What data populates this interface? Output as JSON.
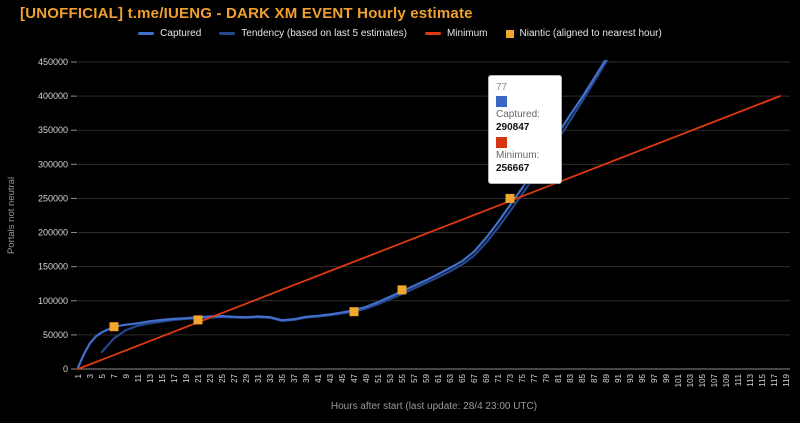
{
  "title": "[UNOFFICIAL] t.me/IUENG - DARK XM EVENT Hourly estimate",
  "legend": [
    {
      "label": "Captured",
      "color": "#4270cc",
      "shape": "dash"
    },
    {
      "label": "Tendency (based on last 5 estimates)",
      "color": "#26468e",
      "shape": "dash"
    },
    {
      "label": "Minimum",
      "color": "#e23a10",
      "shape": "dash"
    },
    {
      "label": "Niantic (aligned to nearest hour)",
      "color": "#f2a62c",
      "shape": "square"
    }
  ],
  "tooltip": {
    "index": "77",
    "rows": [
      {
        "swatch_color": "#3a68c6",
        "label": "Captured:",
        "value": "290847"
      },
      {
        "swatch_color": "#d63511",
        "label": "Minimum:",
        "value": "256667"
      }
    ]
  },
  "chart_data": {
    "type": "line",
    "title": "[UNOFFICIAL] t.me/IUENG - DARK XM EVENT Hourly estimate",
    "xlabel": "Hours after start (last update: 28/4 23:00 UTC)",
    "ylabel": "Portals not neutral",
    "xlim": [
      1,
      119
    ],
    "ylim": [
      0,
      450000
    ],
    "grid": "horizontal",
    "legend_position": "top",
    "y_ticks": [
      0,
      50000,
      100000,
      150000,
      200000,
      250000,
      300000,
      350000,
      400000,
      450000
    ],
    "x_tick_labels": [
      "1",
      "3",
      "5",
      "7",
      "9",
      "11",
      "13",
      "15",
      "17",
      "19",
      "21",
      "23",
      "25",
      "27",
      "29",
      "31",
      "33",
      "35",
      "37",
      "39",
      "41",
      "43",
      "45",
      "47",
      "49",
      "51",
      "53",
      "55",
      "57",
      "59",
      "61",
      "63",
      "65",
      "67",
      "69",
      "71",
      "73",
      "75",
      "77",
      "79",
      "81",
      "83",
      "85",
      "87",
      "89",
      "91",
      "93",
      "95",
      "97",
      "99",
      "101",
      "103",
      "105",
      "107",
      "109",
      "111",
      "113",
      "115",
      "117",
      "119"
    ],
    "series": [
      {
        "name": "Tendency (based on last 5 estimates)",
        "type": "line",
        "color": "#26468e",
        "width": 2.2,
        "points": [
          [
            5,
            25000
          ],
          [
            7,
            45000
          ],
          [
            9,
            57000
          ],
          [
            11,
            63500
          ],
          [
            13,
            67000
          ],
          [
            15,
            69500
          ],
          [
            17,
            72000
          ],
          [
            19,
            73500
          ],
          [
            21,
            74500
          ],
          [
            23,
            75500
          ],
          [
            25,
            76500
          ],
          [
            27,
            75500
          ],
          [
            29,
            75000
          ],
          [
            31,
            76000
          ],
          [
            33,
            75000
          ],
          [
            35,
            70500
          ],
          [
            37,
            72000
          ],
          [
            39,
            75500
          ],
          [
            41,
            77000
          ],
          [
            43,
            79000
          ],
          [
            45,
            81500
          ],
          [
            47,
            84000
          ],
          [
            49,
            88500
          ],
          [
            51,
            95000
          ],
          [
            53,
            102500
          ],
          [
            55,
            110000
          ],
          [
            57,
            118000
          ],
          [
            59,
            126000
          ],
          [
            61,
            134500
          ],
          [
            63,
            143000
          ],
          [
            65,
            153000
          ],
          [
            67,
            166000
          ],
          [
            69,
            185000
          ],
          [
            71,
            207000
          ],
          [
            73,
            231000
          ],
          [
            75,
            256000
          ],
          [
            77,
            281000
          ],
          [
            79,
            308000
          ],
          [
            81,
            336000
          ],
          [
            83,
            364000
          ],
          [
            85,
            392000
          ],
          [
            87,
            421000
          ],
          [
            89,
            450000
          ],
          [
            90,
            464000
          ]
        ]
      },
      {
        "name": "Captured",
        "type": "line",
        "color": "#4270cc",
        "width": 2.2,
        "points": [
          [
            1,
            2000
          ],
          [
            2,
            22000
          ],
          [
            3,
            38000
          ],
          [
            4,
            48000
          ],
          [
            5,
            54000
          ],
          [
            6,
            58000
          ],
          [
            7,
            61500
          ],
          [
            8,
            63500
          ],
          [
            9,
            65000
          ],
          [
            11,
            67000
          ],
          [
            13,
            70000
          ],
          [
            15,
            72000
          ],
          [
            17,
            73500
          ],
          [
            19,
            74500
          ],
          [
            21,
            76000
          ],
          [
            23,
            77000
          ],
          [
            25,
            77500
          ],
          [
            27,
            76500
          ],
          [
            29,
            76000
          ],
          [
            31,
            77000
          ],
          [
            33,
            76000
          ],
          [
            35,
            71500
          ],
          [
            37,
            73000
          ],
          [
            39,
            76500
          ],
          [
            41,
            78000
          ],
          [
            43,
            80000
          ],
          [
            45,
            83000
          ],
          [
            47,
            86000
          ],
          [
            49,
            91000
          ],
          [
            51,
            98000
          ],
          [
            53,
            106000
          ],
          [
            55,
            114000
          ],
          [
            57,
            122000
          ],
          [
            59,
            130000
          ],
          [
            61,
            139000
          ],
          [
            63,
            148000
          ],
          [
            65,
            158000
          ],
          [
            67,
            172000
          ],
          [
            69,
            192000
          ],
          [
            71,
            215000
          ],
          [
            73,
            240000
          ],
          [
            75,
            265000
          ],
          [
            77,
            290847
          ],
          [
            79,
            318000
          ],
          [
            81,
            345000
          ],
          [
            83,
            372000
          ],
          [
            85,
            398000
          ],
          [
            87,
            426000
          ],
          [
            89,
            454000
          ]
        ]
      },
      {
        "name": "Minimum",
        "type": "line",
        "color": "#e23a10",
        "width": 1.8,
        "points": [
          [
            1,
            0
          ],
          [
            118,
            400000
          ]
        ]
      },
      {
        "name": "Niantic (aligned to nearest hour)",
        "type": "points",
        "color": "#f2a62c",
        "size": 9,
        "points": [
          [
            7,
            62000
          ],
          [
            21,
            72000
          ],
          [
            47,
            84000
          ],
          [
            55,
            116000
          ],
          [
            73,
            250000
          ]
        ]
      }
    ]
  }
}
